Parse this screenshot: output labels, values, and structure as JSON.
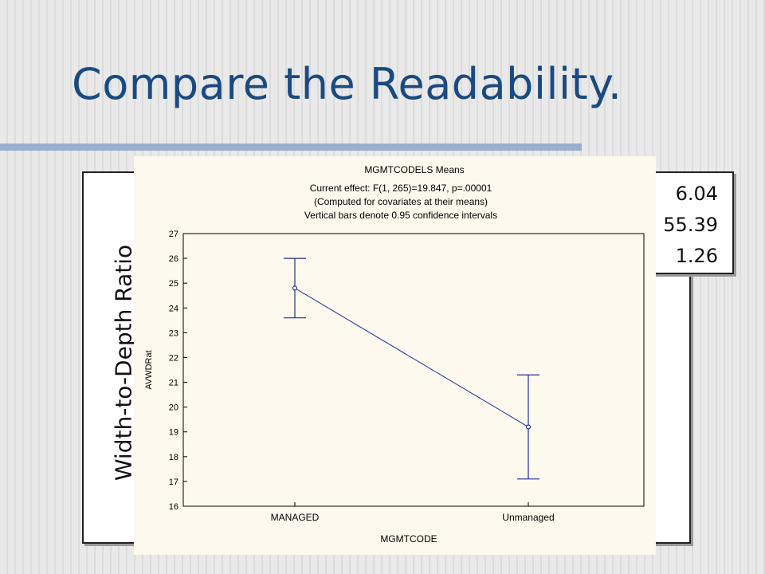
{
  "slide": {
    "title": "Compare the Readability.",
    "rotated_label": "Width-to-Depth Ratio",
    "stats_partial": [
      "6.04",
      "55.39",
      "1.26"
    ],
    "colors": {
      "title": "#1a4a80",
      "rule": "#9bb0cf",
      "series": "#1e2f9e",
      "chart_bg": "#fdf9ee"
    }
  },
  "chart_data": {
    "type": "line",
    "title": "MGMTCODELS Means",
    "subtitle_lines": [
      "Current effect: F(1, 265)=19.847, p=.00001",
      "(Computed for covariates at their means)",
      "Vertical bars denote 0.95 confidence intervals"
    ],
    "xlabel": "MGMTCODE",
    "ylabel": "AVWDRat",
    "categories": [
      "MANAGED",
      "Unmanaged"
    ],
    "series": [
      {
        "values": [
          24.8,
          19.2
        ],
        "ci_low": [
          23.6,
          17.1
        ],
        "ci_high": [
          26.0,
          21.3
        ]
      }
    ],
    "ylim": [
      16,
      27
    ],
    "yticks": [
      16,
      17,
      18,
      19,
      20,
      21,
      22,
      23,
      24,
      25,
      26,
      27
    ],
    "grid": false,
    "legend": "none"
  }
}
